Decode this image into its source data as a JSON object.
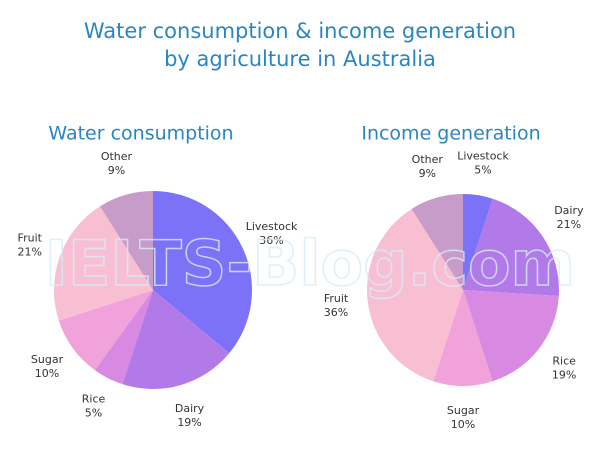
{
  "title": [
    "Water consumption & income generation",
    "by agriculture in Australia"
  ],
  "watermark": "IELTS-Blog.com",
  "chart_data": [
    {
      "type": "pie",
      "title": "Water consumption",
      "categories": [
        "Livestock",
        "Dairy",
        "Rice",
        "Sugar",
        "Fruit",
        "Other"
      ],
      "values": [
        36,
        19,
        5,
        10,
        21,
        9
      ],
      "value_labels": [
        "36%",
        "19%",
        "5%",
        "10%",
        "21%",
        "9%"
      ],
      "colors": [
        "#7b72f8",
        "#b27ae9",
        "#d88ae2",
        "#f1a2da",
        "#f8bfd3",
        "#c79cc8"
      ]
    },
    {
      "type": "pie",
      "title": "Income generation",
      "categories": [
        "Livestock",
        "Dairy",
        "Rice",
        "Sugar",
        "Fruit",
        "Other"
      ],
      "values": [
        5,
        21,
        19,
        10,
        36,
        9
      ],
      "value_labels": [
        "5%",
        "21%",
        "19%",
        "10%",
        "36%",
        "9%"
      ],
      "colors": [
        "#7b72f8",
        "#b27ae9",
        "#d88ae2",
        "#f1a2da",
        "#f8bfd3",
        "#c79cc8"
      ]
    }
  ]
}
